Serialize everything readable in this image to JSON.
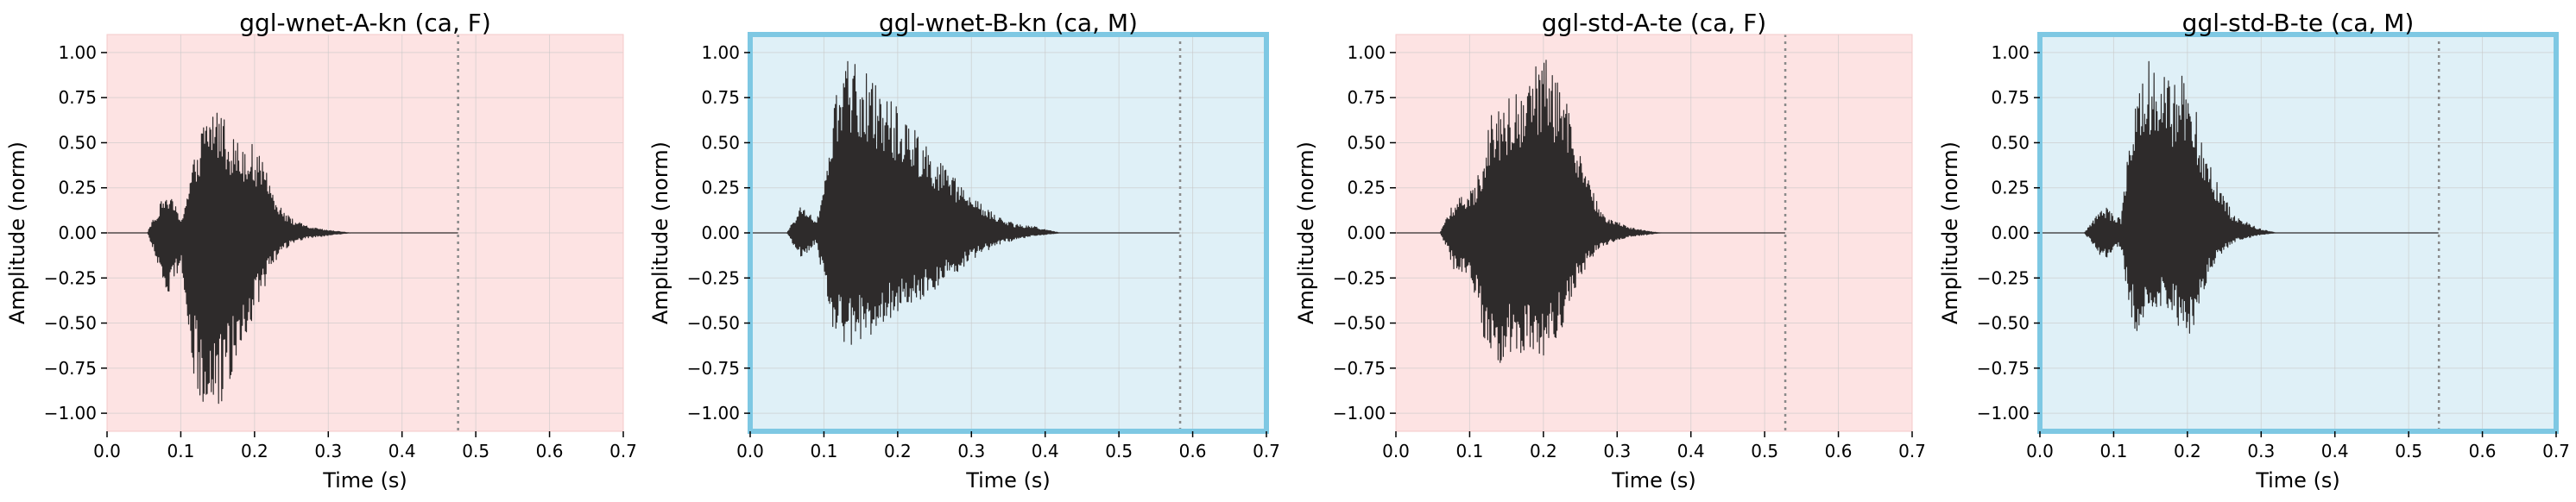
{
  "colors": {
    "female_bg": "#fde3e3",
    "male_bg": "#dff0f7",
    "male_frame": "#7ec8e3",
    "waveform": "#2e2b2b",
    "grid": "#c8c8c8",
    "marker": "#8a8a8a"
  },
  "chart_data": [
    {
      "type": "line",
      "title": "ggl-wnet-A-kn (ca, F)",
      "xlabel": "Time (s)",
      "ylabel": "Amplitude (norm)",
      "xlim": [
        0.0,
        0.7
      ],
      "ylim": [
        -1.1,
        1.1
      ],
      "x_ticks": [
        "0.0",
        "0.1",
        "0.2",
        "0.3",
        "0.4",
        "0.5",
        "0.6",
        "0.7"
      ],
      "y_ticks": [
        "1.00",
        "0.75",
        "0.50",
        "0.25",
        "0.00",
        "−0.25",
        "−0.50",
        "−0.75",
        "−1.00"
      ],
      "grid": true,
      "speaker_gender": "F",
      "end_marker_x": 0.476,
      "envelope": {
        "t": [
          0.0,
          0.055,
          0.06,
          0.07,
          0.08,
          0.09,
          0.1,
          0.11,
          0.12,
          0.13,
          0.14,
          0.15,
          0.16,
          0.17,
          0.18,
          0.19,
          0.2,
          0.21,
          0.22,
          0.23,
          0.24,
          0.25,
          0.27,
          0.29,
          0.31,
          0.33,
          0.476
        ],
        "max": [
          0.0,
          0.0,
          0.06,
          0.15,
          0.22,
          0.18,
          0.08,
          0.25,
          0.45,
          0.62,
          0.7,
          0.72,
          0.65,
          0.55,
          0.5,
          0.52,
          0.48,
          0.4,
          0.3,
          0.2,
          0.12,
          0.08,
          0.04,
          0.02,
          0.01,
          0.0,
          0.0
        ],
        "min": [
          0.0,
          0.0,
          -0.06,
          -0.2,
          -0.35,
          -0.3,
          -0.15,
          -0.55,
          -0.85,
          -0.97,
          -1.0,
          -0.98,
          -0.92,
          -0.78,
          -0.62,
          -0.55,
          -0.45,
          -0.35,
          -0.22,
          -0.15,
          -0.1,
          -0.06,
          -0.03,
          -0.02,
          -0.01,
          0.0,
          0.0
        ]
      }
    },
    {
      "type": "line",
      "title": "ggl-wnet-B-kn (ca, M)",
      "xlabel": "Time (s)",
      "ylabel": "Amplitude (norm)",
      "xlim": [
        0.0,
        0.7
      ],
      "ylim": [
        -1.1,
        1.1
      ],
      "x_ticks": [
        "0.0",
        "0.1",
        "0.2",
        "0.3",
        "0.4",
        "0.5",
        "0.6",
        "0.7"
      ],
      "y_ticks": [
        "1.00",
        "0.75",
        "0.50",
        "0.25",
        "0.00",
        "−0.25",
        "−0.50",
        "−0.75",
        "−1.00"
      ],
      "grid": true,
      "speaker_gender": "M",
      "end_marker_x": 0.583,
      "envelope": {
        "t": [
          0.0,
          0.05,
          0.06,
          0.07,
          0.08,
          0.09,
          0.1,
          0.11,
          0.12,
          0.13,
          0.14,
          0.15,
          0.16,
          0.18,
          0.2,
          0.22,
          0.24,
          0.26,
          0.28,
          0.3,
          0.32,
          0.34,
          0.36,
          0.38,
          0.4,
          0.42,
          0.583
        ],
        "max": [
          0.0,
          0.0,
          0.08,
          0.16,
          0.12,
          0.05,
          0.3,
          0.6,
          0.85,
          0.98,
          0.96,
          0.92,
          0.88,
          0.8,
          0.7,
          0.6,
          0.5,
          0.38,
          0.3,
          0.2,
          0.14,
          0.08,
          0.05,
          0.04,
          0.02,
          0.0,
          0.0
        ],
        "min": [
          0.0,
          0.0,
          -0.08,
          -0.14,
          -0.1,
          -0.05,
          -0.3,
          -0.5,
          -0.6,
          -0.62,
          -0.62,
          -0.6,
          -0.58,
          -0.5,
          -0.45,
          -0.4,
          -0.35,
          -0.28,
          -0.22,
          -0.15,
          -0.1,
          -0.06,
          -0.04,
          -0.02,
          -0.01,
          0.0,
          0.0
        ]
      }
    },
    {
      "type": "line",
      "title": "ggl-std-A-te (ca, F)",
      "xlabel": "Time (s)",
      "ylabel": "Amplitude (norm)",
      "xlim": [
        0.0,
        0.7
      ],
      "ylim": [
        -1.1,
        1.1
      ],
      "x_ticks": [
        "0.0",
        "0.1",
        "0.2",
        "0.3",
        "0.4",
        "0.5",
        "0.6",
        "0.7"
      ],
      "y_ticks": [
        "1.00",
        "0.75",
        "0.50",
        "0.25",
        "0.00",
        "−0.25",
        "−0.50",
        "−0.75",
        "−1.00"
      ],
      "grid": true,
      "speaker_gender": "F",
      "end_marker_x": 0.528,
      "envelope": {
        "t": [
          0.0,
          0.06,
          0.07,
          0.08,
          0.09,
          0.1,
          0.11,
          0.12,
          0.13,
          0.14,
          0.15,
          0.16,
          0.18,
          0.19,
          0.2,
          0.21,
          0.22,
          0.23,
          0.24,
          0.25,
          0.26,
          0.27,
          0.28,
          0.29,
          0.3,
          0.32,
          0.34,
          0.36,
          0.528
        ],
        "max": [
          0.0,
          0.0,
          0.1,
          0.18,
          0.2,
          0.22,
          0.3,
          0.5,
          0.7,
          0.72,
          0.75,
          0.78,
          0.85,
          0.95,
          0.98,
          0.92,
          0.85,
          0.75,
          0.6,
          0.45,
          0.3,
          0.2,
          0.12,
          0.08,
          0.06,
          0.03,
          0.01,
          0.0,
          0.0
        ],
        "min": [
          0.0,
          0.0,
          -0.1,
          -0.22,
          -0.22,
          -0.25,
          -0.4,
          -0.6,
          -0.72,
          -0.75,
          -0.7,
          -0.65,
          -0.72,
          -0.75,
          -0.75,
          -0.7,
          -0.6,
          -0.5,
          -0.35,
          -0.25,
          -0.18,
          -0.12,
          -0.08,
          -0.06,
          -0.04,
          -0.02,
          -0.01,
          0.0,
          0.0
        ]
      }
    },
    {
      "type": "line",
      "title": "ggl-std-B-te (ca, M)",
      "xlabel": "Time (s)",
      "ylabel": "Amplitude (norm)",
      "xlim": [
        0.0,
        0.7
      ],
      "ylim": [
        -1.1,
        1.1
      ],
      "x_ticks": [
        "0.0",
        "0.1",
        "0.2",
        "0.3",
        "0.4",
        "0.5",
        "0.6",
        "0.7"
      ],
      "y_ticks": [
        "1.00",
        "0.75",
        "0.50",
        "0.25",
        "0.00",
        "−0.25",
        "−0.50",
        "−0.75",
        "−1.00"
      ],
      "grid": true,
      "speaker_gender": "M",
      "end_marker_x": 0.541,
      "envelope": {
        "t": [
          0.0,
          0.06,
          0.07,
          0.08,
          0.09,
          0.1,
          0.11,
          0.12,
          0.13,
          0.14,
          0.15,
          0.16,
          0.17,
          0.18,
          0.19,
          0.2,
          0.21,
          0.22,
          0.23,
          0.24,
          0.25,
          0.26,
          0.27,
          0.28,
          0.29,
          0.3,
          0.32,
          0.541
        ],
        "max": [
          0.0,
          0.0,
          0.06,
          0.12,
          0.14,
          0.1,
          0.08,
          0.55,
          0.72,
          0.85,
          1.0,
          0.95,
          0.88,
          0.82,
          0.9,
          0.85,
          0.7,
          0.55,
          0.4,
          0.3,
          0.2,
          0.12,
          0.08,
          0.06,
          0.04,
          0.02,
          0.0,
          0.0
        ],
        "min": [
          0.0,
          0.0,
          -0.05,
          -0.12,
          -0.14,
          -0.1,
          -0.08,
          -0.4,
          -0.55,
          -0.52,
          -0.5,
          -0.45,
          -0.4,
          -0.48,
          -0.55,
          -0.58,
          -0.5,
          -0.35,
          -0.22,
          -0.15,
          -0.1,
          -0.06,
          -0.04,
          -0.03,
          -0.02,
          -0.01,
          0.0,
          0.0
        ]
      }
    }
  ]
}
